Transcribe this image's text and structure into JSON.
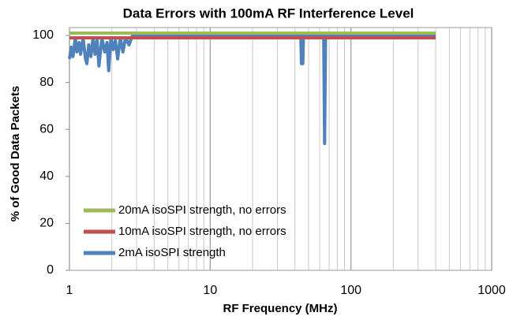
{
  "chart_data": {
    "type": "line",
    "title": "Data Errors with 100mA RF Interference Level",
    "x_label": "RF Frequency (MHz)",
    "y_label": "% of Good Data Packets",
    "xscale": "log",
    "xlim": [
      1,
      1000
    ],
    "xticks": [
      1,
      10,
      100,
      1000
    ],
    "xminorticks": [
      2,
      3,
      4,
      5,
      6,
      7,
      8,
      9,
      20,
      30,
      40,
      50,
      60,
      70,
      80,
      90,
      200,
      300,
      400,
      500,
      600,
      700,
      800,
      900
    ],
    "ylim": [
      0,
      100
    ],
    "yticks": [
      0,
      20,
      40,
      60,
      80,
      100
    ],
    "grid": "x",
    "legend": "lower left",
    "series": [
      {
        "name": "20mA isoSPI strength, no errors",
        "color": "#9bbb59",
        "x": [
          1,
          400
        ],
        "values": [
          101,
          101
        ]
      },
      {
        "name": "10mA isoSPI strength, no errors",
        "color": "#c0504d",
        "x": [
          1,
          400
        ],
        "values": [
          99,
          99
        ]
      },
      {
        "name": "2mA isoSPI strength",
        "color": "#4f81bd",
        "x": [
          1,
          1.03,
          1.06,
          1.1,
          1.13,
          1.17,
          1.2,
          1.25,
          1.3,
          1.33,
          1.37,
          1.42,
          1.47,
          1.52,
          1.57,
          1.62,
          1.7,
          1.78,
          1.85,
          1.9,
          1.97,
          2.05,
          2.12,
          2.2,
          2.3,
          2.4,
          2.5,
          2.65,
          2.8,
          3,
          44,
          44.5,
          45,
          45.5,
          46,
          46.5,
          64,
          65,
          66,
          400
        ],
        "values": [
          90,
          95,
          91,
          99,
          93,
          97,
          92,
          99,
          90,
          88,
          96,
          91,
          99,
          92,
          98,
          87,
          99,
          93,
          97,
          85,
          99,
          94,
          98,
          90,
          99,
          93,
          99,
          96,
          100,
          100,
          100,
          88,
          95,
          88,
          100,
          100,
          100,
          54,
          100,
          100
        ]
      }
    ]
  }
}
